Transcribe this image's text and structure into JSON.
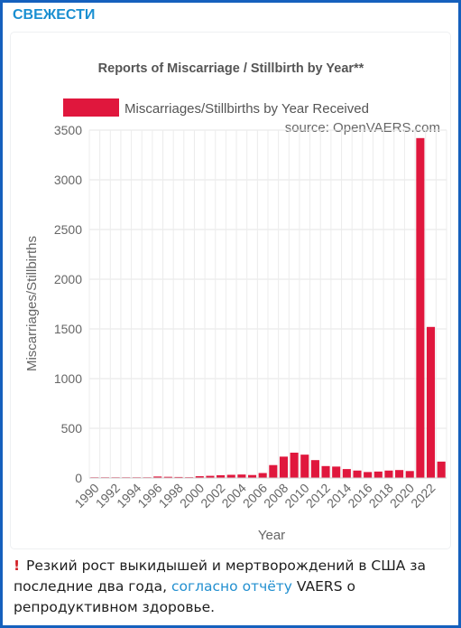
{
  "header": {
    "title": "СВЕЖЕСТИ"
  },
  "caption": {
    "alert_icon": "!",
    "text_before": "Резкий рост выкидышей и мертворождений в США за последние два года,",
    "link_text": "согласно отчёту",
    "text_after": "VAERS о репродуктивном здоровье."
  },
  "colors": {
    "bar": "#e0173d",
    "header": "#1a8fd1",
    "frame": "#1560bd",
    "link": "#2390d0"
  },
  "chart_data": {
    "type": "bar",
    "title": "Reports of Miscarriage / Stillbirth by Year**",
    "source": "source: OpenVAERS.com",
    "legend": "Miscarriages/Stillbirths by Year Received",
    "legend_position": "top",
    "xlabel": "Year",
    "ylabel": "Miscarriages/Stillbirths",
    "ylim": [
      0,
      3500
    ],
    "yticks": [
      "0",
      "500",
      "1000",
      "1500",
      "2000",
      "2500",
      "3000",
      "3500"
    ],
    "grid": true,
    "categories": [
      "1990",
      "1991",
      "1992",
      "1993",
      "1994",
      "1995",
      "1996",
      "1997",
      "1998",
      "1999",
      "2000",
      "2001",
      "2002",
      "2003",
      "2004",
      "2005",
      "2006",
      "2007",
      "2008",
      "2009",
      "2010",
      "2011",
      "2012",
      "2013",
      "2014",
      "2015",
      "2016",
      "2017",
      "2018",
      "2019",
      "2020",
      "2021",
      "2022",
      "2023"
    ],
    "xtick_labels": [
      "1990",
      "",
      "1992",
      "",
      "1994",
      "",
      "1996",
      "",
      "1998",
      "",
      "2000",
      "",
      "2002",
      "",
      "2004",
      "",
      "2006",
      "",
      "2008",
      "",
      "2010",
      "",
      "2012",
      "",
      "2014",
      "",
      "2016",
      "",
      "2018",
      "",
      "2020",
      "",
      "2022",
      ""
    ],
    "values": [
      5,
      4,
      6,
      5,
      7,
      6,
      15,
      12,
      10,
      8,
      18,
      22,
      28,
      32,
      35,
      30,
      50,
      130,
      215,
      255,
      235,
      180,
      120,
      115,
      90,
      75,
      60,
      65,
      75,
      80,
      70,
      3420,
      1520,
      165
    ]
  }
}
